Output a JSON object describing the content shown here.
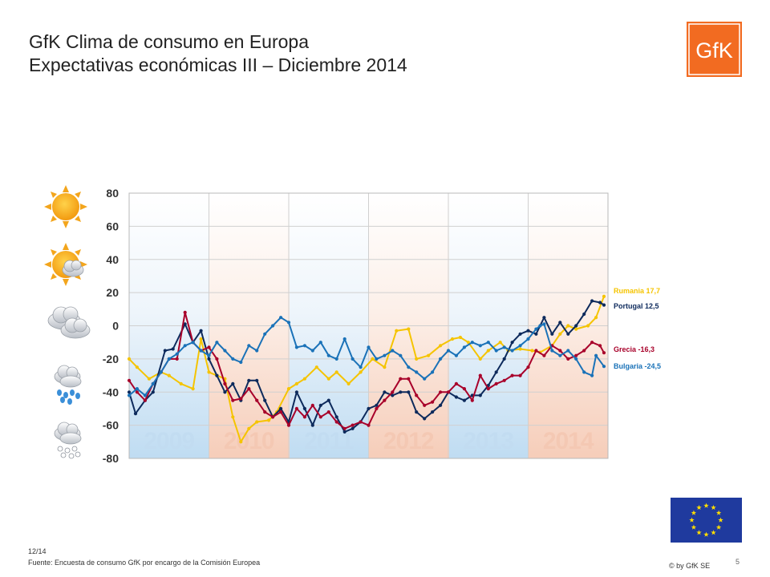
{
  "header": {
    "title_line1": "GfK Clima de consumo en Europa",
    "title_line2": "Expectativas económicas III – Diciembre 2014"
  },
  "logo": {
    "text": "GfK",
    "color": "#f26b21"
  },
  "weather_icons": [
    "sun-icon",
    "sun-cloud-icon",
    "cloud-icon",
    "rain-cloud-icon",
    "snow-cloud-icon"
  ],
  "footer": {
    "date": "12/14",
    "source": "Fuente: Encuesta de consumo GfK por encargo de la Comisión Europea",
    "copyright": "© by GfK SE",
    "page": "5"
  },
  "chart_data": {
    "type": "line",
    "ylim": [
      -80,
      80
    ],
    "yticks": [
      "80",
      "60",
      "40",
      "20",
      "0",
      "-20",
      "-40",
      "-60",
      "-80"
    ],
    "ytick_values": [
      80,
      60,
      40,
      20,
      0,
      -20,
      -40,
      -60,
      -80
    ],
    "year_bands": [
      "2009",
      "2010",
      "2011",
      "2012",
      "2013",
      "2014"
    ],
    "x_range": [
      2009.0,
      2015.0
    ],
    "series": [
      {
        "key": "rumania",
        "color": "#f5c400",
        "label": "Rumania 17,7",
        "end_value": 17.7,
        "values": [
          [
            2009.0,
            -20
          ],
          [
            2009.1,
            -25
          ],
          [
            2009.25,
            -32
          ],
          [
            2009.4,
            -28
          ],
          [
            2009.5,
            -30
          ],
          [
            2009.65,
            -35
          ],
          [
            2009.8,
            -38
          ],
          [
            2009.9,
            -8
          ],
          [
            2010.0,
            -28
          ],
          [
            2010.1,
            -30
          ],
          [
            2010.2,
            -32
          ],
          [
            2010.3,
            -55
          ],
          [
            2010.4,
            -70
          ],
          [
            2010.5,
            -62
          ],
          [
            2010.6,
            -58
          ],
          [
            2010.75,
            -57
          ],
          [
            2010.85,
            -52
          ],
          [
            2011.0,
            -38
          ],
          [
            2011.1,
            -35
          ],
          [
            2011.2,
            -32
          ],
          [
            2011.35,
            -25
          ],
          [
            2011.5,
            -32
          ],
          [
            2011.6,
            -28
          ],
          [
            2011.75,
            -35
          ],
          [
            2011.9,
            -28
          ],
          [
            2012.05,
            -20
          ],
          [
            2012.2,
            -25
          ],
          [
            2012.35,
            -3
          ],
          [
            2012.5,
            -2
          ],
          [
            2012.6,
            -20
          ],
          [
            2012.75,
            -18
          ],
          [
            2012.9,
            -12
          ],
          [
            2013.05,
            -8
          ],
          [
            2013.15,
            -7
          ],
          [
            2013.25,
            -10
          ],
          [
            2013.4,
            -20
          ],
          [
            2013.5,
            -15
          ],
          [
            2013.65,
            -10
          ],
          [
            2013.75,
            -15
          ],
          [
            2013.9,
            -14
          ],
          [
            2014.05,
            -15
          ],
          [
            2014.15,
            -16
          ],
          [
            2014.3,
            -12
          ],
          [
            2014.4,
            -5
          ],
          [
            2014.5,
            0
          ],
          [
            2014.6,
            -2
          ],
          [
            2014.75,
            0
          ],
          [
            2014.85,
            5
          ],
          [
            2014.95,
            17.7
          ]
        ]
      },
      {
        "key": "portugal",
        "color": "#0d2a5c",
        "label": "Portugal 12,5",
        "end_value": 12.5,
        "values": [
          [
            2009.0,
            -40
          ],
          [
            2009.08,
            -53
          ],
          [
            2009.2,
            -45
          ],
          [
            2009.3,
            -40
          ],
          [
            2009.45,
            -15
          ],
          [
            2009.55,
            -14
          ],
          [
            2009.7,
            1
          ],
          [
            2009.8,
            -10
          ],
          [
            2009.9,
            -3
          ],
          [
            2010.0,
            -20
          ],
          [
            2010.1,
            -30
          ],
          [
            2010.2,
            -40
          ],
          [
            2010.3,
            -35
          ],
          [
            2010.4,
            -45
          ],
          [
            2010.5,
            -33
          ],
          [
            2010.6,
            -33
          ],
          [
            2010.7,
            -45
          ],
          [
            2010.8,
            -55
          ],
          [
            2010.9,
            -50
          ],
          [
            2011.0,
            -58
          ],
          [
            2011.1,
            -40
          ],
          [
            2011.2,
            -50
          ],
          [
            2011.3,
            -60
          ],
          [
            2011.4,
            -48
          ],
          [
            2011.5,
            -45
          ],
          [
            2011.6,
            -55
          ],
          [
            2011.7,
            -64
          ],
          [
            2011.8,
            -62
          ],
          [
            2011.9,
            -58
          ],
          [
            2012.0,
            -50
          ],
          [
            2012.1,
            -48
          ],
          [
            2012.2,
            -40
          ],
          [
            2012.3,
            -42
          ],
          [
            2012.4,
            -40
          ],
          [
            2012.5,
            -40
          ],
          [
            2012.6,
            -52
          ],
          [
            2012.7,
            -56
          ],
          [
            2012.8,
            -52
          ],
          [
            2012.9,
            -48
          ],
          [
            2013.0,
            -40
          ],
          [
            2013.1,
            -43
          ],
          [
            2013.2,
            -45
          ],
          [
            2013.3,
            -42
          ],
          [
            2013.4,
            -42
          ],
          [
            2013.5,
            -36
          ],
          [
            2013.6,
            -28
          ],
          [
            2013.7,
            -20
          ],
          [
            2013.8,
            -10
          ],
          [
            2013.9,
            -5
          ],
          [
            2014.0,
            -3
          ],
          [
            2014.1,
            -5
          ],
          [
            2014.2,
            5
          ],
          [
            2014.3,
            -5
          ],
          [
            2014.4,
            2
          ],
          [
            2014.5,
            -5
          ],
          [
            2014.6,
            0
          ],
          [
            2014.7,
            7
          ],
          [
            2014.8,
            15
          ],
          [
            2014.9,
            14
          ],
          [
            2014.95,
            12.5
          ]
        ]
      },
      {
        "key": "grecia",
        "color": "#a8002a",
        "label": "Grecia -16,3",
        "end_value": -16.3,
        "values": [
          [
            2009.0,
            -33
          ],
          [
            2009.1,
            -40
          ],
          [
            2009.2,
            -45
          ],
          [
            2009.3,
            -35
          ],
          [
            2009.4,
            -28
          ],
          [
            2009.5,
            -20
          ],
          [
            2009.6,
            -20
          ],
          [
            2009.7,
            8
          ],
          [
            2009.8,
            -10
          ],
          [
            2009.9,
            -15
          ],
          [
            2010.0,
            -13
          ],
          [
            2010.1,
            -20
          ],
          [
            2010.2,
            -35
          ],
          [
            2010.3,
            -45
          ],
          [
            2010.4,
            -44
          ],
          [
            2010.5,
            -38
          ],
          [
            2010.6,
            -45
          ],
          [
            2010.7,
            -52
          ],
          [
            2010.8,
            -55
          ],
          [
            2010.9,
            -52
          ],
          [
            2011.0,
            -60
          ],
          [
            2011.1,
            -50
          ],
          [
            2011.2,
            -55
          ],
          [
            2011.3,
            -48
          ],
          [
            2011.4,
            -55
          ],
          [
            2011.5,
            -52
          ],
          [
            2011.6,
            -58
          ],
          [
            2011.7,
            -62
          ],
          [
            2011.8,
            -60
          ],
          [
            2011.9,
            -58
          ],
          [
            2012.0,
            -60
          ],
          [
            2012.1,
            -50
          ],
          [
            2012.2,
            -45
          ],
          [
            2012.3,
            -40
          ],
          [
            2012.4,
            -32
          ],
          [
            2012.5,
            -32
          ],
          [
            2012.6,
            -42
          ],
          [
            2012.7,
            -48
          ],
          [
            2012.8,
            -46
          ],
          [
            2012.9,
            -40
          ],
          [
            2013.0,
            -40
          ],
          [
            2013.1,
            -35
          ],
          [
            2013.2,
            -38
          ],
          [
            2013.3,
            -45
          ],
          [
            2013.4,
            -30
          ],
          [
            2013.5,
            -38
          ],
          [
            2013.6,
            -35
          ],
          [
            2013.7,
            -33
          ],
          [
            2013.8,
            -30
          ],
          [
            2013.9,
            -30
          ],
          [
            2014.0,
            -25
          ],
          [
            2014.1,
            -15
          ],
          [
            2014.2,
            -18
          ],
          [
            2014.3,
            -12
          ],
          [
            2014.4,
            -15
          ],
          [
            2014.5,
            -20
          ],
          [
            2014.6,
            -18
          ],
          [
            2014.7,
            -15
          ],
          [
            2014.8,
            -10
          ],
          [
            2014.9,
            -12
          ],
          [
            2014.95,
            -16.3
          ]
        ]
      },
      {
        "key": "bulgaria",
        "color": "#1a72b8",
        "label": "Bulgaria -24,5",
        "end_value": -24.5,
        "values": [
          [
            2009.0,
            -42
          ],
          [
            2009.1,
            -38
          ],
          [
            2009.2,
            -42
          ],
          [
            2009.3,
            -35
          ],
          [
            2009.4,
            -28
          ],
          [
            2009.5,
            -20
          ],
          [
            2009.6,
            -17
          ],
          [
            2009.7,
            -12
          ],
          [
            2009.8,
            -10
          ],
          [
            2009.9,
            -15
          ],
          [
            2010.0,
            -18
          ],
          [
            2010.1,
            -10
          ],
          [
            2010.2,
            -15
          ],
          [
            2010.3,
            -20
          ],
          [
            2010.4,
            -22
          ],
          [
            2010.5,
            -12
          ],
          [
            2010.6,
            -15
          ],
          [
            2010.7,
            -5
          ],
          [
            2010.8,
            0
          ],
          [
            2010.9,
            5
          ],
          [
            2011.0,
            2
          ],
          [
            2011.1,
            -13
          ],
          [
            2011.2,
            -12
          ],
          [
            2011.3,
            -15
          ],
          [
            2011.4,
            -10
          ],
          [
            2011.5,
            -18
          ],
          [
            2011.6,
            -20
          ],
          [
            2011.7,
            -8
          ],
          [
            2011.8,
            -20
          ],
          [
            2011.9,
            -25
          ],
          [
            2012.0,
            -13
          ],
          [
            2012.1,
            -20
          ],
          [
            2012.2,
            -18
          ],
          [
            2012.3,
            -15
          ],
          [
            2012.4,
            -18
          ],
          [
            2012.5,
            -25
          ],
          [
            2012.6,
            -28
          ],
          [
            2012.7,
            -32
          ],
          [
            2012.8,
            -28
          ],
          [
            2012.9,
            -20
          ],
          [
            2013.0,
            -15
          ],
          [
            2013.1,
            -18
          ],
          [
            2013.2,
            -13
          ],
          [
            2013.3,
            -10
          ],
          [
            2013.4,
            -12
          ],
          [
            2013.5,
            -10
          ],
          [
            2013.6,
            -15
          ],
          [
            2013.7,
            -13
          ],
          [
            2013.8,
            -15
          ],
          [
            2013.9,
            -12
          ],
          [
            2014.0,
            -8
          ],
          [
            2014.1,
            -2
          ],
          [
            2014.15,
            0
          ],
          [
            2014.2,
            1
          ],
          [
            2014.3,
            -15
          ],
          [
            2014.4,
            -18
          ],
          [
            2014.5,
            -15
          ],
          [
            2014.6,
            -20
          ],
          [
            2014.7,
            -28
          ],
          [
            2014.8,
            -30
          ],
          [
            2014.85,
            -18
          ],
          [
            2014.95,
            -24.5
          ]
        ]
      }
    ]
  }
}
